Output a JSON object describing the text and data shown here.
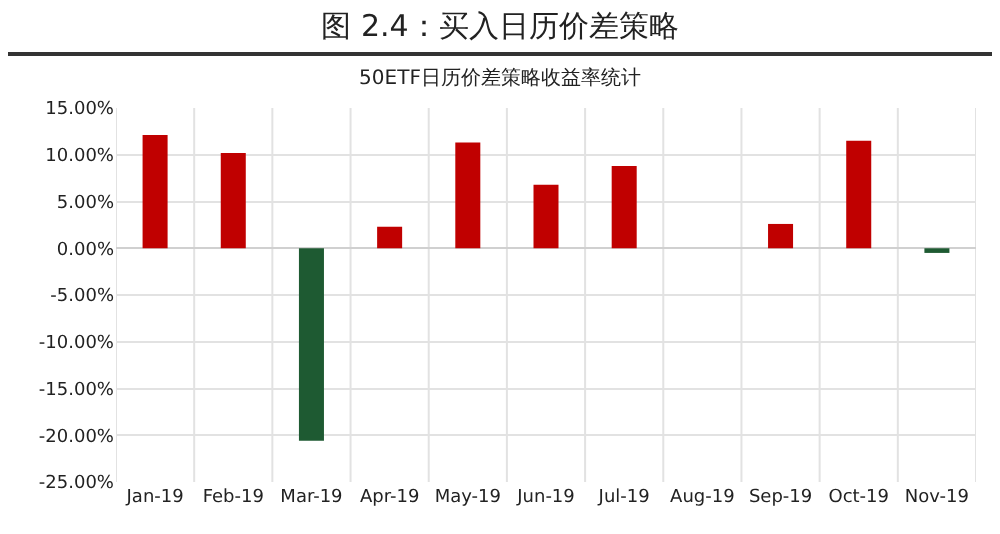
{
  "chart_data": {
    "type": "bar",
    "title": "图 2.4：买入日历价差策略",
    "subtitle": "50ETF日历价差策略收益率统计",
    "categories": [
      "Jan-19",
      "Feb-19",
      "Mar-19",
      "Apr-19",
      "May-19",
      "Jun-19",
      "Jul-19",
      "Aug-19",
      "Sep-19",
      "Oct-19",
      "Nov-19"
    ],
    "values": [
      12.1,
      10.2,
      -20.6,
      2.3,
      11.3,
      6.8,
      8.8,
      0,
      2.6,
      11.5,
      -0.5
    ],
    "colors": [
      "#c00000",
      "#c00000",
      "#1e5a32",
      "#c00000",
      "#c00000",
      "#c00000",
      "#c00000",
      "#c00000",
      "#c00000",
      "#c00000",
      "#1e5a32"
    ],
    "ylim": [
      -25,
      15
    ],
    "yticks": [
      {
        "value": -25,
        "label": "-25.00%"
      },
      {
        "value": -20,
        "label": "-20.00%"
      },
      {
        "value": -15,
        "label": "-15.00%"
      },
      {
        "value": -10,
        "label": "-10.00%"
      },
      {
        "value": -5,
        "label": "-5.00%"
      },
      {
        "value": 0,
        "label": "0.00%"
      },
      {
        "value": 5,
        "label": "5.00%"
      },
      {
        "value": 10,
        "label": "10.00%"
      },
      {
        "value": 15,
        "label": "15.00%"
      }
    ],
    "grid": true,
    "legend": false
  }
}
